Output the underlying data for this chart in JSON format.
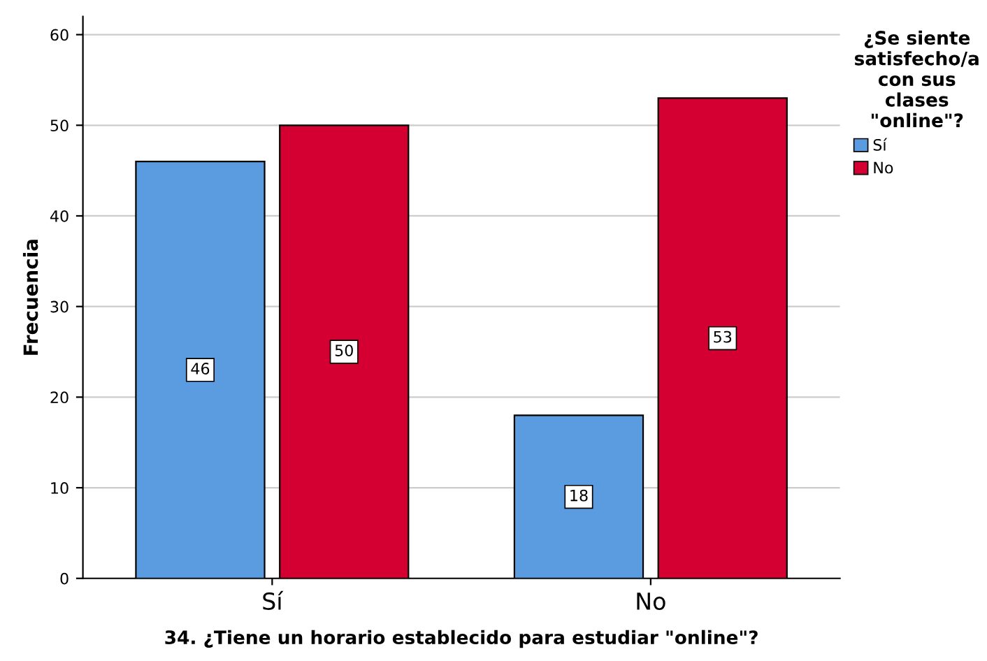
{
  "chart_data": {
    "type": "bar",
    "xlabel": "34. ¿Tiene un horario establecido para estudiar \"online\"?",
    "ylabel": "Frecuencia",
    "legend_title": "¿Se siente\nsatisfecho/a\ncon sus\nclases\n\"online\"?",
    "categories": [
      "Sí",
      "No"
    ],
    "series": [
      {
        "name": "Sí",
        "color": "#5b9be0",
        "values": [
          46,
          18
        ]
      },
      {
        "name": "No",
        "color": "#d50032",
        "values": [
          50,
          53
        ]
      }
    ],
    "ylim": [
      0,
      62
    ],
    "yticks": [
      0,
      10,
      20,
      30,
      40,
      50,
      60
    ],
    "grid": "y",
    "legend": "top right",
    "data_labels": true
  }
}
